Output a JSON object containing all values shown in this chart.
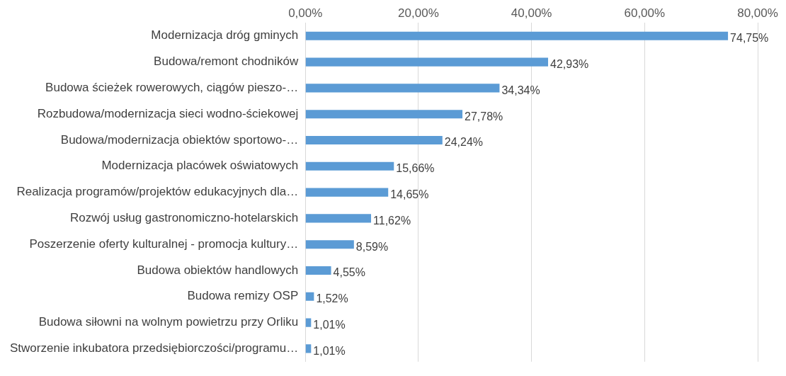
{
  "chart_data": {
    "type": "bar",
    "orientation": "horizontal",
    "categories": [
      "Modernizacja dróg gminych",
      "Budowa/remont chodników",
      "Budowa ścieżek rowerowych, ciągów pieszo-…",
      "Rozbudowa/modernizacja sieci wodno-ściekowej",
      "Budowa/modernizacja obiektów sportowo-…",
      "Modernizacja placówek oświatowych",
      "Realizacja programów/projektów edukacyjnych dla…",
      "Rozwój usług gastronomiczno-hotelarskich",
      "Poszerzenie oferty kulturalnej - promocja kultury…",
      "Budowa obiektów handlowych",
      "Budowa remizy OSP",
      "Budowa siłowni na wolnym powietrzu przy Orliku",
      "Stworzenie inkubatora przedsiębiorczości/programu…"
    ],
    "values": [
      74.75,
      42.93,
      34.34,
      27.78,
      24.24,
      15.66,
      14.65,
      11.62,
      8.59,
      4.55,
      1.52,
      1.01,
      1.01
    ],
    "value_labels": [
      "74,75%",
      "42,93%",
      "34,34%",
      "27,78%",
      "24,24%",
      "15,66%",
      "14,65%",
      "11,62%",
      "8,59%",
      "4,55%",
      "1,52%",
      "1,01%",
      "1,01%"
    ],
    "color": "#5b9bd5",
    "xlim": [
      0,
      80
    ],
    "xticks": [
      {
        "value": 0,
        "label": "0,00%"
      },
      {
        "value": 20,
        "label": "20,00%"
      },
      {
        "value": 40,
        "label": "40,00%"
      },
      {
        "value": 60,
        "label": "60,00%"
      },
      {
        "value": 80,
        "label": "80,00%"
      }
    ],
    "grid": "x"
  }
}
